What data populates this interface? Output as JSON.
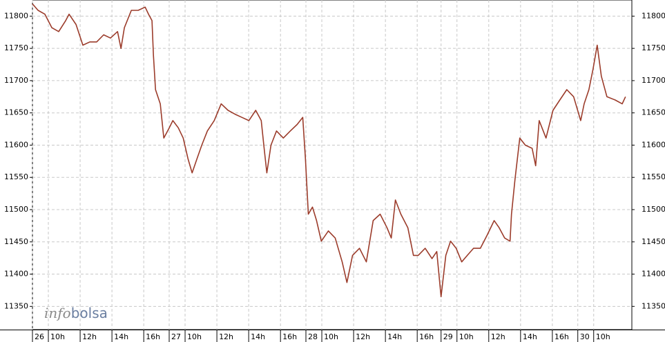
{
  "chart_data": {
    "type": "line",
    "annotation": [
      "info",
      "bolsa"
    ],
    "ylim": [
      11314,
      11825
    ],
    "yticks": [
      11350,
      11400,
      11450,
      11500,
      11550,
      11600,
      11650,
      11700,
      11750,
      11800
    ],
    "xlim": [
      0,
      37.7
    ],
    "xticks": [
      {
        "value": 0,
        "label": "26"
      },
      {
        "value": 1,
        "label": "10h"
      },
      {
        "value": 3,
        "label": "12h"
      },
      {
        "value": 5,
        "label": "14h"
      },
      {
        "value": 7,
        "label": "16h"
      },
      {
        "value": 8.6,
        "label": "27"
      },
      {
        "value": 9.6,
        "label": "10h"
      },
      {
        "value": 11.6,
        "label": "12h"
      },
      {
        "value": 13.6,
        "label": "14h"
      },
      {
        "value": 15.6,
        "label": "16h"
      },
      {
        "value": 17.2,
        "label": "28"
      },
      {
        "value": 18.2,
        "label": "10h"
      },
      {
        "value": 20.2,
        "label": "12h"
      },
      {
        "value": 22.2,
        "label": "14h"
      },
      {
        "value": 24.2,
        "label": "16h"
      },
      {
        "value": 25.7,
        "label": "29"
      },
      {
        "value": 26.7,
        "label": "10h"
      },
      {
        "value": 28.7,
        "label": "12h"
      },
      {
        "value": 30.7,
        "label": "14h"
      },
      {
        "value": 32.7,
        "label": "16h"
      },
      {
        "value": 34.3,
        "label": "30"
      },
      {
        "value": 35.3,
        "label": "10h"
      }
    ],
    "grid": true,
    "x": [
      0,
      0.35,
      0.78,
      1.22,
      1.65,
      2.09,
      2.3,
      2.74,
      3.17,
      3.61,
      4.04,
      4.48,
      4.91,
      5.35,
      5.57,
      5.78,
      6.22,
      6.65,
      7.09,
      7.3,
      7.52,
      7.61,
      7.74,
      8.04,
      8.26,
      8.61,
      8.83,
      9.17,
      9.48,
      9.78,
      10.04,
      10.35,
      10.65,
      11,
      11.43,
      11.87,
      12.3,
      12.74,
      13.17,
      13.61,
      14.04,
      14.39,
      14.57,
      14.74,
      15,
      15.35,
      15.78,
      16.22,
      16.65,
      17,
      17.17,
      17.35,
      17.61,
      17.87,
      18.17,
      18.61,
      19.04,
      19.48,
      19.78,
      20.13,
      20.57,
      21,
      21.43,
      21.87,
      22.3,
      22.57,
      22.83,
      23.17,
      23.61,
      23.96,
      24.26,
      24.7,
      25.13,
      25.43,
      25.7,
      26,
      26.3,
      26.65,
      27,
      27.35,
      27.74,
      28.17,
      28.61,
      29.04,
      29.35,
      29.7,
      30.04,
      30.13,
      30.35,
      30.65,
      31,
      31.43,
      31.65,
      31.87,
      32.3,
      32.74,
      33.17,
      33.61,
      34.04,
      34.48,
      34.7,
      35,
      35.26,
      35.52,
      35.78,
      36.13,
      36.65,
      37.09,
      37.3
    ],
    "series": [
      {
        "color": "#9b3b2a",
        "values": [
          11819,
          11809,
          11803,
          11782,
          11776,
          11793,
          11803,
          11787,
          11755,
          11760,
          11760,
          11771,
          11766,
          11776,
          11750,
          11782,
          11809,
          11809,
          11814,
          11803,
          11793,
          11739,
          11686,
          11664,
          11611,
          11627,
          11638,
          11627,
          11611,
          11579,
          11557,
          11579,
          11600,
          11622,
          11638,
          11664,
          11654,
          11648,
          11643,
          11638,
          11654,
          11638,
          11595,
          11557,
          11600,
          11622,
          11611,
          11622,
          11632,
          11643,
          11579,
          11493,
          11504,
          11483,
          11451,
          11467,
          11456,
          11419,
          11387,
          11429,
          11440,
          11419,
          11483,
          11493,
          11472,
          11456,
          11515,
          11493,
          11472,
          11429,
          11429,
          11440,
          11424,
          11435,
          11365,
          11429,
          11451,
          11440,
          11419,
          11429,
          11440,
          11440,
          11461,
          11483,
          11472,
          11456,
          11451,
          11493,
          11547,
          11611,
          11600,
          11595,
          11568,
          11638,
          11611,
          11654,
          11670,
          11686,
          11675,
          11638,
          11664,
          11686,
          11718,
          11755,
          11707,
          11675,
          11670,
          11664,
          11675
        ]
      }
    ]
  }
}
